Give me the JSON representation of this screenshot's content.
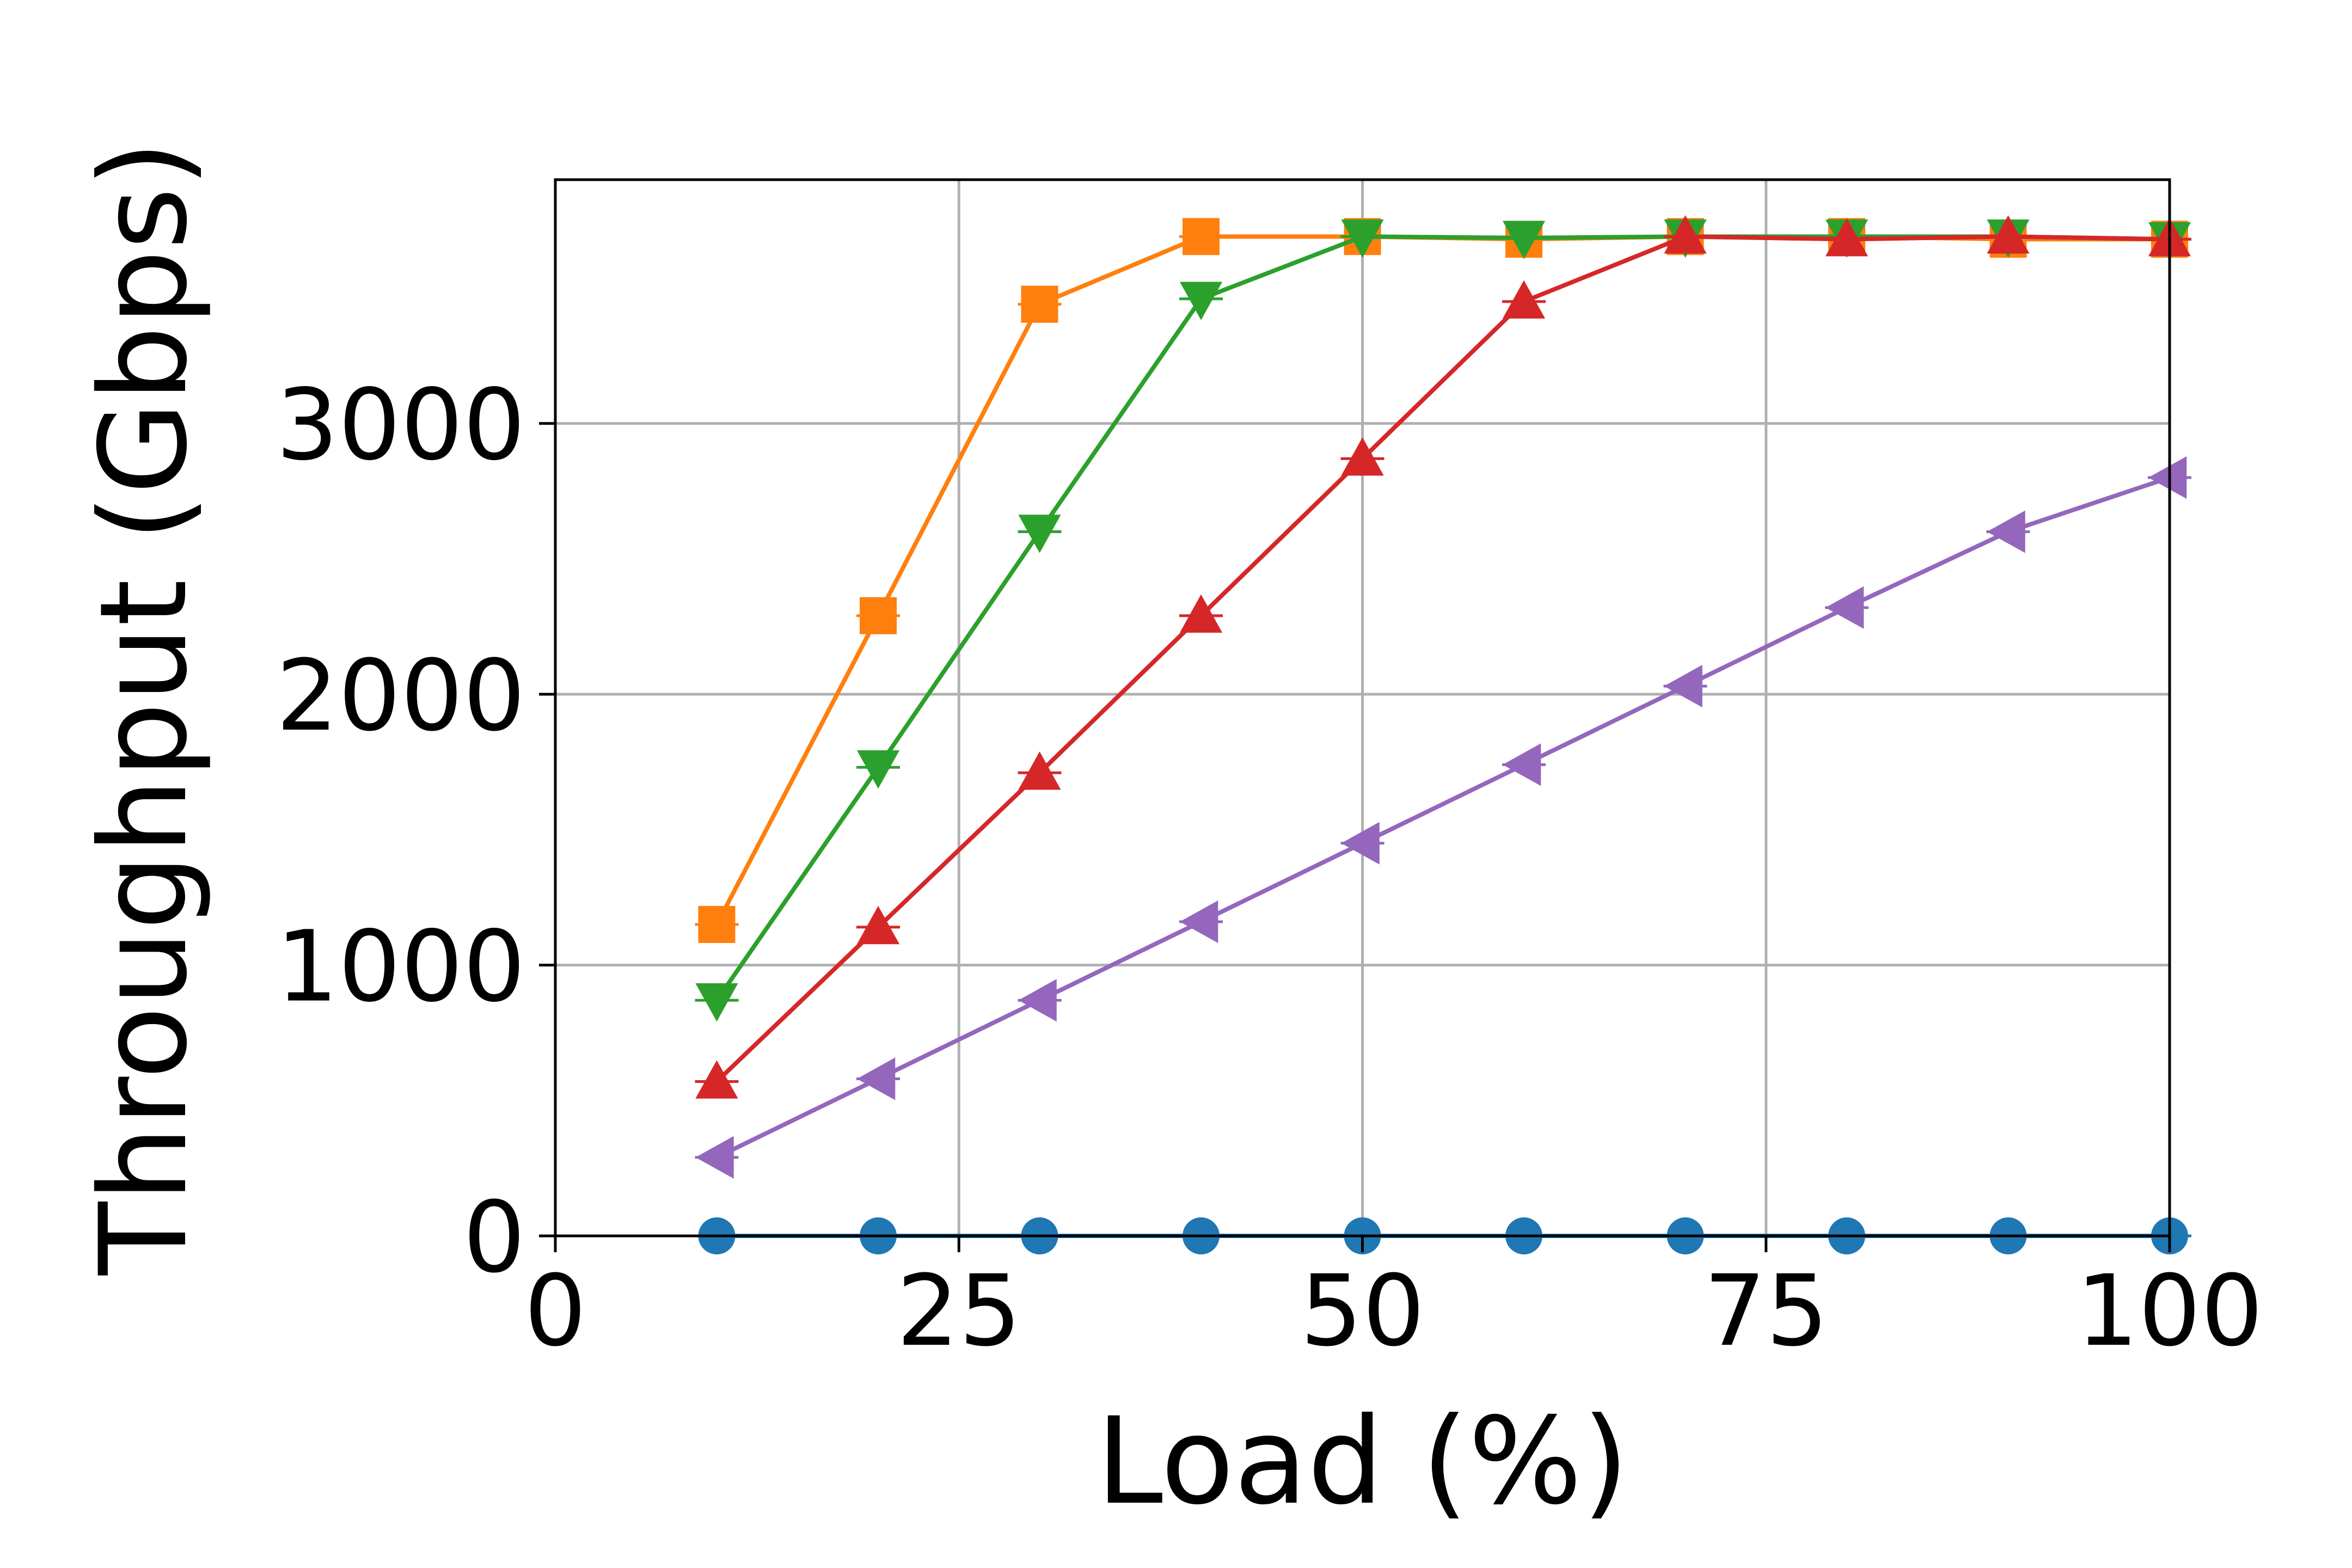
{
  "chart_data": {
    "type": "line",
    "title": "",
    "xlabel": "Load (%)",
    "ylabel": "Throughput (Gbps)",
    "xlim": [
      0,
      100
    ],
    "ylim": [
      0,
      3900
    ],
    "xticks": [
      0,
      25,
      50,
      75,
      100
    ],
    "xtick_labels": [
      "0",
      "25",
      "50",
      "75",
      "100"
    ],
    "yticks": [
      0,
      1000,
      2000,
      3000
    ],
    "ytick_labels": [
      "0",
      "1000",
      "2000",
      "3000"
    ],
    "grid": true,
    "legend": "none",
    "x": [
      10,
      20,
      30,
      40,
      50,
      60,
      70,
      80,
      90,
      100
    ],
    "series": [
      {
        "color": "#1f77b4",
        "marker": "circle",
        "values": [
          0,
          0,
          0,
          0,
          0,
          0,
          0,
          0,
          0,
          0
        ]
      },
      {
        "color": "#ff7f0e",
        "marker": "square",
        "values": [
          1150,
          2290,
          3440,
          3690,
          3690,
          3680,
          3690,
          3690,
          3680,
          3680
        ]
      },
      {
        "color": "#2ca02c",
        "marker": "triangle-down",
        "values": [
          870,
          1730,
          2600,
          3460,
          3690,
          3685,
          3690,
          3690,
          3690,
          3680
        ]
      },
      {
        "color": "#d62728",
        "marker": "triangle-up",
        "values": [
          570,
          1140,
          1710,
          2290,
          2870,
          3450,
          3690,
          3680,
          3690,
          3680
        ]
      },
      {
        "color": "#9467bd",
        "marker": "triangle-left",
        "values": [
          290,
          580,
          870,
          1160,
          1450,
          1740,
          2030,
          2320,
          2600,
          2800
        ]
      }
    ]
  }
}
